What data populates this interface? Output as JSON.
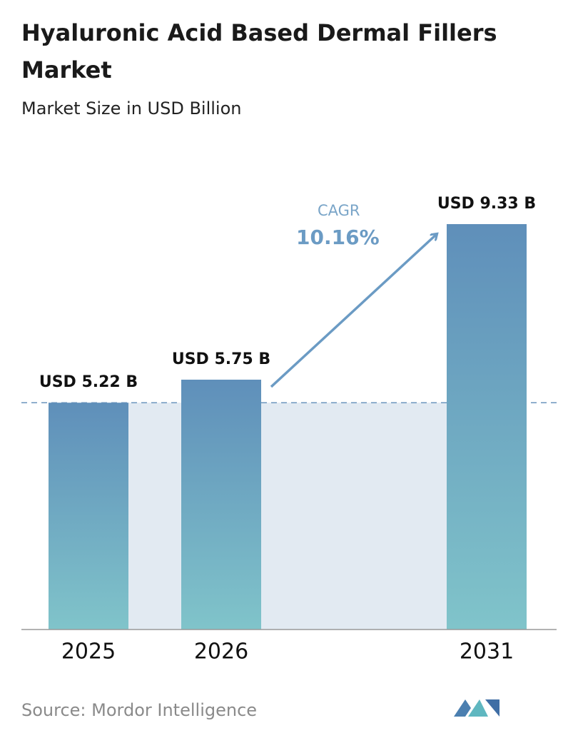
{
  "chart_data": {
    "type": "bar",
    "title": "Hyaluronic Acid Based Dermal Fillers Market",
    "subtitle": "Market Size in USD Billion",
    "categories": [
      "2025",
      "2026",
      "2031"
    ],
    "values": [
      5.22,
      5.75,
      9.33
    ],
    "value_labels": [
      "USD 5.22 B",
      "USD 5.75 B",
      "USD 9.33 B"
    ],
    "annotations": {
      "cagr_label": "CAGR",
      "cagr_value": "10.16%"
    },
    "source": "Source: Mordor Intelligence"
  }
}
